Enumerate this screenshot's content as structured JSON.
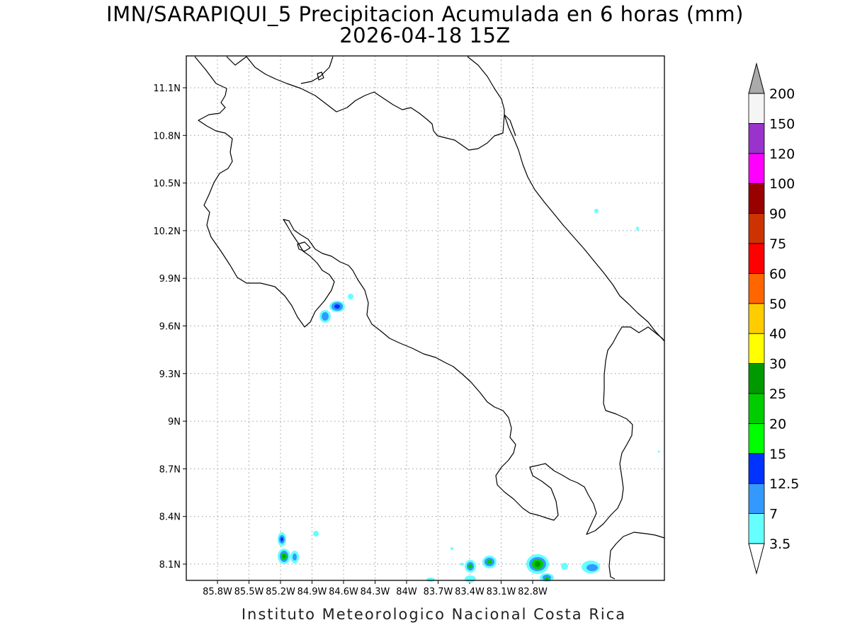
{
  "title": "IMN/SARAPIQUI_5 Precipitacion Acumulada en 6 horas (mm)",
  "subtitle": "2026-04-18 15Z",
  "credit": "Instituto Meteorologico Nacional Costa Rica",
  "lon_ticks": [
    "85.8W",
    "85.5W",
    "85.2W",
    "84.9W",
    "84.6W",
    "84.3W",
    "84W",
    "83.7W",
    "83.4W",
    "83.1W",
    "82.8W"
  ],
  "lat_ticks": [
    "11.1N",
    "10.8N",
    "10.5N",
    "10.2N",
    "9.9N",
    "9.6N",
    "9.3N",
    "9N",
    "8.7N",
    "8.4N",
    "8.1N"
  ],
  "colorbar": {
    "labels": [
      "3.5",
      "7",
      "12.5",
      "15",
      "20",
      "25",
      "30",
      "40",
      "50",
      "60",
      "75",
      "90",
      "100",
      "120",
      "150",
      "200"
    ],
    "colors": [
      "#66ffff",
      "#3399ff",
      "#0033ff",
      "#00ff00",
      "#00cc00",
      "#009900",
      "#ffff00",
      "#ffcc00",
      "#ff6600",
      "#ff0000",
      "#cc3300",
      "#990000",
      "#ff00ff",
      "#9933cc",
      "#f5f5f5"
    ],
    "top_arrow_color": "#aaaaaa",
    "bottom_arrow_color": "#ffffff"
  }
}
